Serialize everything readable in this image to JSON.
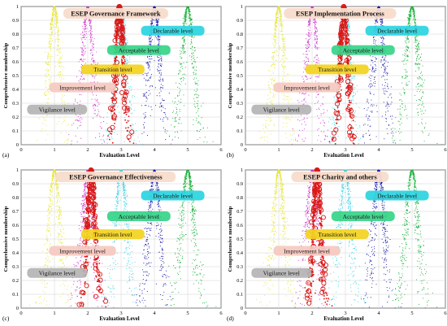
{
  "figure": {
    "panel_labels": [
      "(a)",
      "(b)",
      "(c)",
      "(d)"
    ]
  },
  "chart_data": [
    {
      "type": "scatter",
      "title": "ESEP Governance Framework",
      "xlabel": "Evaluation Level",
      "ylabel": "Comprehensive membership",
      "xlim": [
        0,
        6
      ],
      "ylim": [
        0,
        1
      ],
      "xticks": [
        0,
        1,
        2,
        3,
        4,
        5,
        6
      ],
      "yticks": [
        0,
        0.1,
        0.2,
        0.3,
        0.4,
        0.5,
        0.6,
        0.7,
        0.8,
        0.9,
        1
      ],
      "grid": true,
      "legend": "none",
      "series": [
        {
          "name": "Vigilance level",
          "expectation": 1,
          "color": "#e6e63a",
          "label_color": "#b4b4b4"
        },
        {
          "name": "Improvement level",
          "expectation": 2,
          "color": "#cc33cc",
          "label_color": "#f5c9c0"
        },
        {
          "name": "Transition level",
          "expectation": 3,
          "color": "#3fd3e6",
          "label_color": "#f2d21e"
        },
        {
          "name": "Acceptable level",
          "expectation": 4,
          "color": "#1a1ab0",
          "label_color": "#36d488"
        },
        {
          "name": "Declarable level",
          "expectation": 5,
          "color": "#18b23a",
          "label_color": "#2ad4e0"
        }
      ],
      "evaluation_cloud": {
        "expectation": 2.95,
        "color": "#e01010"
      }
    },
    {
      "type": "scatter",
      "title": "ESEP Implementation Process",
      "xlabel": "Evaluation Level",
      "ylabel": "Comprehensive membership",
      "xlim": [
        0,
        6
      ],
      "ylim": [
        0,
        1
      ],
      "xticks": [
        0,
        1,
        2,
        3,
        4,
        5,
        6
      ],
      "yticks": [
        0,
        0.1,
        0.2,
        0.3,
        0.4,
        0.5,
        0.6,
        0.7,
        0.8,
        0.9,
        1
      ],
      "grid": true,
      "legend": "none",
      "series": [
        {
          "name": "Vigilance level",
          "expectation": 1,
          "color": "#e6e63a",
          "label_color": "#b4b4b4"
        },
        {
          "name": "Improvement level",
          "expectation": 2,
          "color": "#cc33cc",
          "label_color": "#f5c9c0"
        },
        {
          "name": "Transition level",
          "expectation": 3,
          "color": "#3fd3e6",
          "label_color": "#f2d21e"
        },
        {
          "name": "Acceptable level",
          "expectation": 4,
          "color": "#1a1ab0",
          "label_color": "#36d488"
        },
        {
          "name": "Declarable level",
          "expectation": 5,
          "color": "#18b23a",
          "label_color": "#2ad4e0"
        }
      ],
      "evaluation_cloud": {
        "expectation": 2.95,
        "color": "#e01010"
      }
    },
    {
      "type": "scatter",
      "title": "ESEP Governance Effectiveness",
      "xlabel": "Evaluation Level",
      "ylabel": "Comprehensive membership",
      "xlim": [
        0,
        6
      ],
      "ylim": [
        0,
        1
      ],
      "xticks": [
        0,
        1,
        2,
        3,
        4,
        5,
        6
      ],
      "yticks": [
        0,
        0.1,
        0.2,
        0.3,
        0.4,
        0.5,
        0.6,
        0.7,
        0.8,
        0.9,
        1
      ],
      "grid": true,
      "legend": "none",
      "series": [
        {
          "name": "Vigilance level",
          "expectation": 1,
          "color": "#e6e63a",
          "label_color": "#b4b4b4"
        },
        {
          "name": "Improvement level",
          "expectation": 2,
          "color": "#cc33cc",
          "label_color": "#f5c9c0"
        },
        {
          "name": "Transition level",
          "expectation": 3,
          "color": "#3fd3e6",
          "label_color": "#f2d21e"
        },
        {
          "name": "Acceptable level",
          "expectation": 4,
          "color": "#1a1ab0",
          "label_color": "#36d488"
        },
        {
          "name": "Declarable level",
          "expectation": 5,
          "color": "#18b23a",
          "label_color": "#2ad4e0"
        }
      ],
      "evaluation_cloud": {
        "expectation": 2.1,
        "color": "#e01010"
      }
    },
    {
      "type": "scatter",
      "title": "ESEP Charity and others",
      "xlabel": "Evaluation Level",
      "ylabel": "Comprehensive membership",
      "xlim": [
        0,
        6
      ],
      "ylim": [
        0,
        1
      ],
      "xticks": [
        0,
        1,
        2,
        3,
        4,
        5,
        6
      ],
      "yticks": [
        0,
        0.1,
        0.2,
        0.3,
        0.4,
        0.5,
        0.6,
        0.7,
        0.8,
        0.9,
        1
      ],
      "grid": true,
      "legend": "none",
      "series": [
        {
          "name": "Vigilance level",
          "expectation": 1,
          "color": "#e6e63a",
          "label_color": "#b4b4b4"
        },
        {
          "name": "Improvement level",
          "expectation": 2,
          "color": "#cc33cc",
          "label_color": "#f5c9c0"
        },
        {
          "name": "Transition level",
          "expectation": 3,
          "color": "#3fd3e6",
          "label_color": "#f2d21e"
        },
        {
          "name": "Acceptable level",
          "expectation": 4,
          "color": "#1a1ab0",
          "label_color": "#36d488"
        },
        {
          "name": "Declarable level",
          "expectation": 5,
          "color": "#18b23a",
          "label_color": "#2ad4e0"
        }
      ],
      "evaluation_cloud": {
        "expectation": 2.15,
        "color": "#e01010"
      }
    }
  ]
}
